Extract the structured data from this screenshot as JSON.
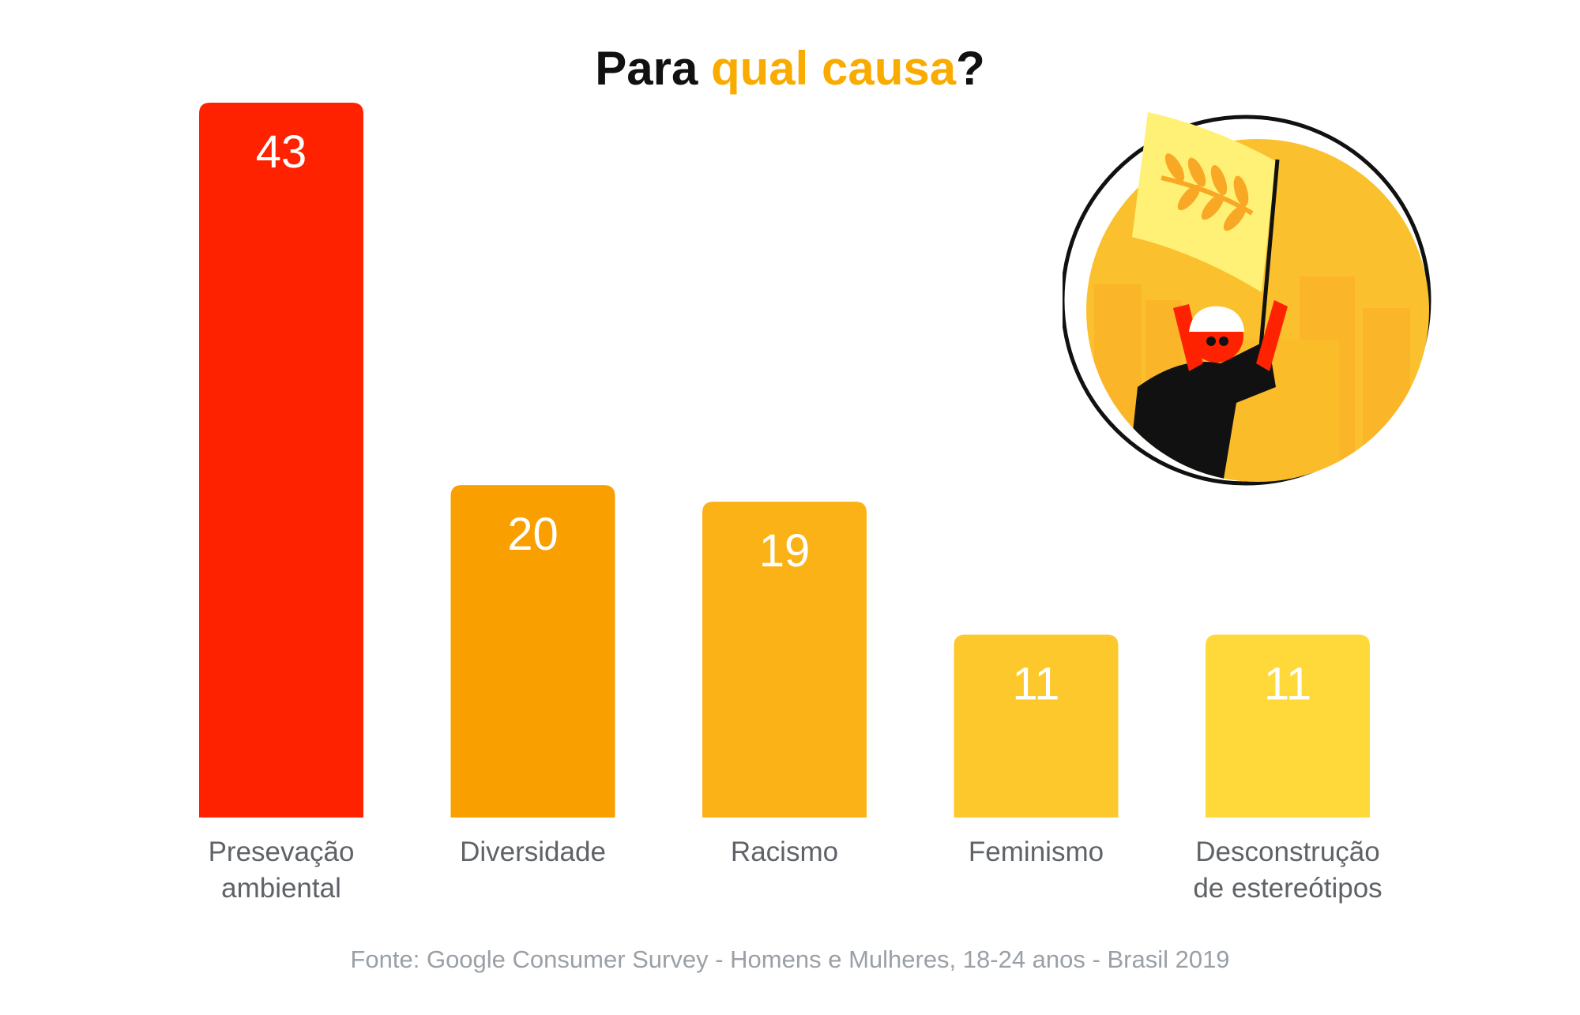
{
  "title": {
    "part1": "Para ",
    "accent": "qual causa",
    "part2": "?",
    "accent_color": "#f9ab00"
  },
  "source": "Fonte: Google Consumer Survey - Homens e Mulheres, 18-24 anos - Brasil 2019",
  "illustration": {
    "icon": "protester-with-flag-icon",
    "colors": {
      "circle": "#fbc02d",
      "flag": "#fff176",
      "leaves": "#f9a825",
      "person": "#ff2200",
      "shirt": "#111111"
    }
  },
  "chart_data": {
    "type": "bar",
    "categories": [
      [
        "Presevação",
        "ambiental"
      ],
      [
        "Diversidade"
      ],
      [
        "Racismo"
      ],
      [
        "Feminismo"
      ],
      [
        "Desconstrução",
        "de estereótipos"
      ]
    ],
    "values": [
      43,
      20,
      19,
      11,
      11
    ],
    "colors": [
      "#ff2200",
      "#f9a000",
      "#fbb217",
      "#fdc82b",
      "#ffd83a"
    ],
    "title": "Para qual causa?",
    "xlabel": "",
    "ylabel": "",
    "ylim": [
      0,
      43
    ],
    "grid": false,
    "legend": "none",
    "value_labels": "inside-top"
  }
}
